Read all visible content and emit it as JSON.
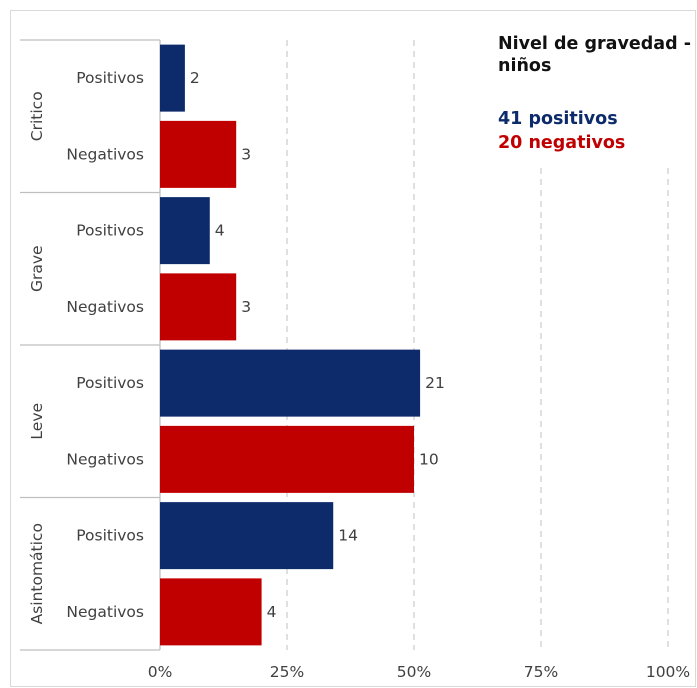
{
  "chart_data": {
    "type": "bar",
    "orientation": "horizontal",
    "title": "Nivel de gravedad -\nniños",
    "summary": {
      "positivos_text": "41 positivos",
      "negativos_text": "20 negativos"
    },
    "groups": [
      {
        "name": "Critico",
        "bars": [
          {
            "label": "Positivos",
            "percent": 4.9,
            "count": "2",
            "series": "positivos"
          },
          {
            "label": "Negativos",
            "percent": 15,
            "count": "3",
            "series": "negativos"
          }
        ]
      },
      {
        "name": "Grave",
        "bars": [
          {
            "label": "Positivos",
            "percent": 9.8,
            "count": "4",
            "series": "positivos"
          },
          {
            "label": "Negativos",
            "percent": 15,
            "count": "3",
            "series": "negativos"
          }
        ]
      },
      {
        "name": "Leve",
        "bars": [
          {
            "label": "Positivos",
            "percent": 51.2,
            "count": "21",
            "series": "positivos"
          },
          {
            "label": "Negativos",
            "percent": 50,
            "count": "10",
            "series": "negativos"
          }
        ]
      },
      {
        "name": "Asintomático",
        "bars": [
          {
            "label": "Positivos",
            "percent": 34.1,
            "count": "14",
            "series": "positivos"
          },
          {
            "label": "Negativos",
            "percent": 20,
            "count": "4",
            "series": "negativos"
          }
        ]
      }
    ],
    "xaxis": {
      "ticks": [
        "0%",
        "25%",
        "50%",
        "75%",
        "100%"
      ],
      "xlim": [
        0,
        100
      ]
    },
    "grid": true,
    "colors": {
      "positivos": "#0d2b6b",
      "negativos": "#c00000",
      "grid": "#cfcfcf",
      "text": "#404040"
    }
  }
}
